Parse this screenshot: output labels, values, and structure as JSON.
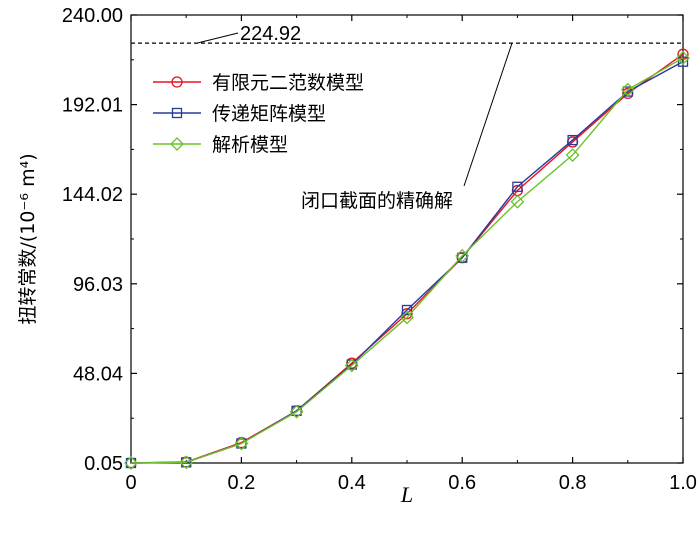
{
  "chart_data": {
    "type": "line",
    "xlabel": "L",
    "ylabel": "扭转常数/(10⁻⁶ m⁴)",
    "xlim": [
      0,
      1.0
    ],
    "ylim": [
      0.05,
      240.0
    ],
    "x_ticks": [
      0,
      0.2,
      0.4,
      0.6,
      0.8,
      1.0
    ],
    "x_tick_labels": [
      "0",
      "0.2",
      "0.4",
      "0.6",
      "0.8",
      "1.0"
    ],
    "y_ticks": [
      0.05,
      48.04,
      96.03,
      144.02,
      192.01,
      240.0
    ],
    "y_tick_labels": [
      "0.05",
      "48.04",
      "96.03",
      "144.02",
      "192.01",
      "240.00"
    ],
    "x": [
      0,
      0.1,
      0.2,
      0.3,
      0.4,
      0.5,
      0.6,
      0.7,
      0.8,
      0.9,
      1.0
    ],
    "series": [
      {
        "name": "有限元二范数模型",
        "marker": "circle",
        "color": "#e8141c",
        "values": [
          0.05,
          0.6,
          11,
          28,
          53.5,
          80,
          110,
          146,
          172,
          198,
          219
        ]
      },
      {
        "name": "传递矩阵模型",
        "marker": "square",
        "color": "#2a3a9a",
        "values": [
          0.05,
          0.4,
          10.5,
          28,
          52.8,
          82,
          110,
          148,
          173,
          199,
          215
        ]
      },
      {
        "name": "解析模型",
        "marker": "diamond",
        "color": "#6cc02a",
        "values": [
          0.05,
          0.4,
          10.5,
          27.5,
          52.3,
          78,
          111,
          140,
          165,
          200,
          217
        ]
      }
    ],
    "reference_line": {
      "value": 224.92,
      "label": "224.92",
      "style": "dashed",
      "color": "#000000"
    },
    "annotation": {
      "text": "闭口截面的精确解"
    },
    "legend_position": "top-left",
    "grid": false
  }
}
